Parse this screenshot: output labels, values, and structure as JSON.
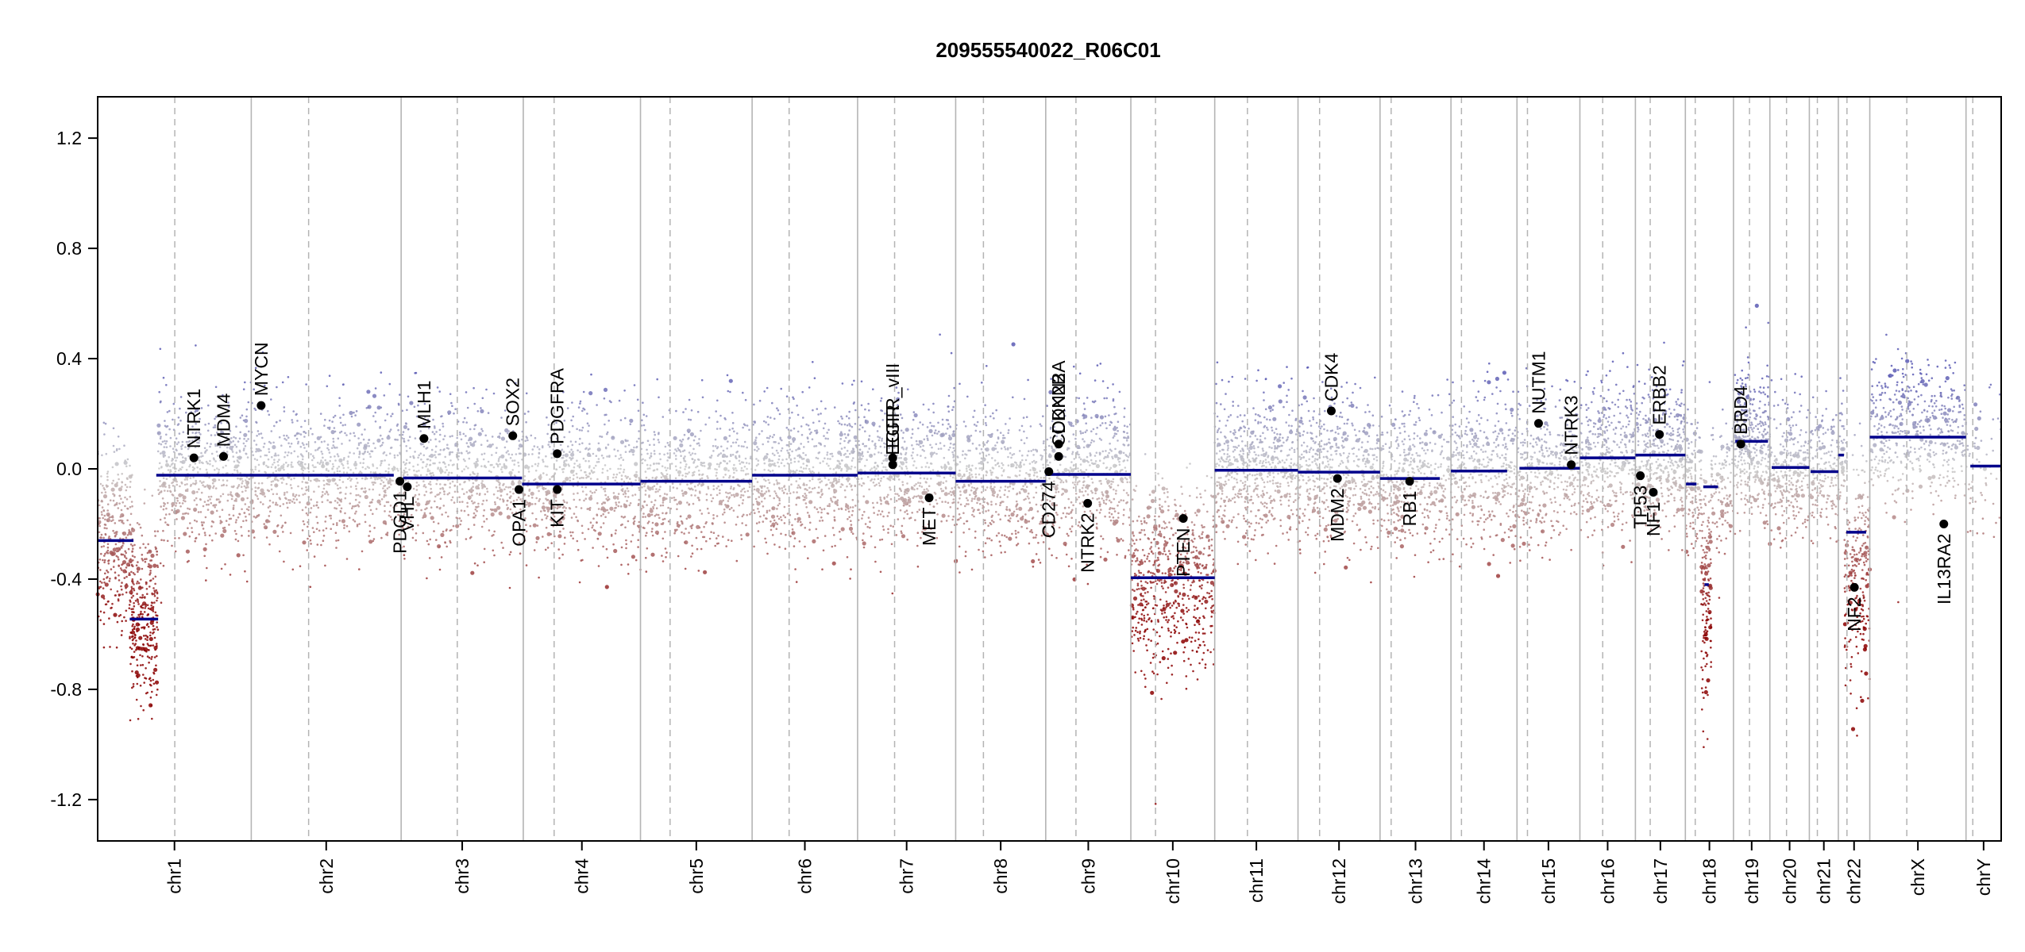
{
  "chart_data": {
    "type": "scatter",
    "title": "209555540022_R06C01",
    "ylim": [
      -1.35,
      1.35
    ],
    "yticks": [
      1.2,
      0.8,
      0.4,
      0.0,
      -0.4,
      -0.8,
      -1.2
    ],
    "ytick_labels": [
      "1.2",
      "0.8",
      "0.4",
      "0.0",
      "-0.4",
      "-0.8",
      "-1.2"
    ],
    "chromosomes": [
      {
        "label": "chr1",
        "start": 0,
        "end": 249,
        "centromere": 125
      },
      {
        "label": "chr2",
        "start": 249,
        "end": 492,
        "centromere": 342
      },
      {
        "label": "chr3",
        "start": 492,
        "end": 690,
        "centromere": 583
      },
      {
        "label": "chr4",
        "start": 690,
        "end": 880,
        "centromere": 740
      },
      {
        "label": "chr5",
        "start": 880,
        "end": 1061,
        "centromere": 928
      },
      {
        "label": "chr6",
        "start": 1061,
        "end": 1232,
        "centromere": 1121
      },
      {
        "label": "chr7",
        "start": 1232,
        "end": 1391,
        "centromere": 1292
      },
      {
        "label": "chr8",
        "start": 1391,
        "end": 1537,
        "centromere": 1436
      },
      {
        "label": "chr9",
        "start": 1537,
        "end": 1675,
        "centromere": 1586
      },
      {
        "label": "chr10",
        "start": 1675,
        "end": 1811,
        "centromere": 1715
      },
      {
        "label": "chr11",
        "start": 1811,
        "end": 1946,
        "centromere": 1864
      },
      {
        "label": "chr12",
        "start": 1946,
        "end": 2079,
        "centromere": 1981
      },
      {
        "label": "chr13",
        "start": 2079,
        "end": 2194,
        "centromere": 2097
      },
      {
        "label": "chr14",
        "start": 2194,
        "end": 2301,
        "centromere": 2211
      },
      {
        "label": "chr15",
        "start": 2301,
        "end": 2403,
        "centromere": 2318
      },
      {
        "label": "chr16",
        "start": 2403,
        "end": 2493,
        "centromere": 2440
      },
      {
        "label": "chr17",
        "start": 2493,
        "end": 2574,
        "centromere": 2517
      },
      {
        "label": "chr18",
        "start": 2574,
        "end": 2652,
        "centromere": 2590
      },
      {
        "label": "chr19",
        "start": 2652,
        "end": 2711,
        "centromere": 2678
      },
      {
        "label": "chr20",
        "start": 2711,
        "end": 2775,
        "centromere": 2738
      },
      {
        "label": "chr21",
        "start": 2775,
        "end": 2822,
        "centromere": 2788
      },
      {
        "label": "chr22",
        "start": 2822,
        "end": 2873,
        "centromere": 2836
      },
      {
        "label": "chrX",
        "start": 2873,
        "end": 3029,
        "centromere": 2933
      },
      {
        "label": "chrY",
        "start": 3029,
        "end": 3086,
        "centromere": 3040
      }
    ],
    "segments": [
      {
        "start": 0,
        "end": 58,
        "value": -0.26
      },
      {
        "start": 52,
        "end": 98,
        "value": -0.545
      },
      {
        "start": 95,
        "end": 480,
        "value": -0.023
      },
      {
        "start": 495,
        "end": 688,
        "value": -0.033
      },
      {
        "start": 688,
        "end": 880,
        "value": -0.055
      },
      {
        "start": 880,
        "end": 1061,
        "value": -0.045
      },
      {
        "start": 1061,
        "end": 1232,
        "value": -0.023
      },
      {
        "start": 1232,
        "end": 1391,
        "value": -0.015
      },
      {
        "start": 1391,
        "end": 1537,
        "value": -0.045
      },
      {
        "start": 1537,
        "end": 1675,
        "value": -0.02
      },
      {
        "start": 1675,
        "end": 1811,
        "value": -0.395
      },
      {
        "start": 1811,
        "end": 1946,
        "value": -0.005
      },
      {
        "start": 1946,
        "end": 2079,
        "value": -0.012
      },
      {
        "start": 2079,
        "end": 2176,
        "value": -0.035
      },
      {
        "start": 2194,
        "end": 2285,
        "value": -0.008
      },
      {
        "start": 2305,
        "end": 2403,
        "value": 0.002
      },
      {
        "start": 2403,
        "end": 2493,
        "value": 0.04
      },
      {
        "start": 2493,
        "end": 2574,
        "value": 0.05
      },
      {
        "start": 2575,
        "end": 2592,
        "value": -0.055
      },
      {
        "start": 2603,
        "end": 2627,
        "value": -0.065
      },
      {
        "start": 2605,
        "end": 2612,
        "value": -0.42
      },
      {
        "start": 2655,
        "end": 2708,
        "value": 0.1
      },
      {
        "start": 2714,
        "end": 2775,
        "value": 0.005
      },
      {
        "start": 2777,
        "end": 2822,
        "value": -0.01
      },
      {
        "start": 2822,
        "end": 2831,
        "value": 0.05
      },
      {
        "start": 2835,
        "end": 2867,
        "value": -0.23
      },
      {
        "start": 2873,
        "end": 3029,
        "value": 0.115
      },
      {
        "start": 3036,
        "end": 3086,
        "value": 0.01
      }
    ],
    "genes": [
      {
        "name": "NTRK1",
        "x": 156,
        "y": 0.04
      },
      {
        "name": "MDM4",
        "x": 204,
        "y": 0.045
      },
      {
        "name": "MYCN",
        "x": 265,
        "y": 0.23
      },
      {
        "name": "PDGD1",
        "x": 490,
        "y": -0.045
      },
      {
        "name": "VHL",
        "x": 502,
        "y": -0.065
      },
      {
        "name": "MLH1",
        "x": 529,
        "y": 0.11
      },
      {
        "name": "SOX2",
        "x": 673,
        "y": 0.12
      },
      {
        "name": "OPA1",
        "x": 683,
        "y": -0.075
      },
      {
        "name": "PDGFRA",
        "x": 745,
        "y": 0.055
      },
      {
        "name": "KIT",
        "x": 745,
        "y": -0.075
      },
      {
        "name": "EGFR_vIII",
        "x": 1289,
        "y": 0.04
      },
      {
        "name": "EGFR",
        "x": 1289,
        "y": 0.015
      },
      {
        "name": "MET",
        "x": 1348,
        "y": -0.105
      },
      {
        "name": "CD274",
        "x": 1542,
        "y": -0.01
      },
      {
        "name": "CDKN2A",
        "x": 1558,
        "y": 0.09
      },
      {
        "name": "CDKN2B",
        "x": 1558,
        "y": 0.045
      },
      {
        "name": "NTRK2",
        "x": 1605,
        "y": -0.125
      },
      {
        "name": "PTEN",
        "x": 1760,
        "y": -0.18
      },
      {
        "name": "CDK4",
        "x": 2000,
        "y": 0.21
      },
      {
        "name": "MDM2",
        "x": 2010,
        "y": -0.035
      },
      {
        "name": "RB1",
        "x": 2127,
        "y": -0.045
      },
      {
        "name": "NUTM1",
        "x": 2336,
        "y": 0.165
      },
      {
        "name": "NTRK3",
        "x": 2389,
        "y": 0.015
      },
      {
        "name": "TP53",
        "x": 2501,
        "y": -0.025
      },
      {
        "name": "NF1",
        "x": 2522,
        "y": -0.085
      },
      {
        "name": "ERBB2",
        "x": 2532,
        "y": 0.125
      },
      {
        "name": "BRD4",
        "x": 2664,
        "y": 0.09
      },
      {
        "name": "NF2",
        "x": 2848,
        "y": -0.43
      },
      {
        "name": "IL13RA2",
        "x": 2993,
        "y": -0.2
      }
    ],
    "probe_cloud": [
      {
        "start": 0,
        "end": 58,
        "center": -0.26,
        "spread": 0.16,
        "n": 330
      },
      {
        "start": 52,
        "end": 98,
        "center": -0.55,
        "spread": 0.17,
        "n": 300
      },
      {
        "start": 98,
        "end": 249,
        "center": -0.02,
        "spread": 0.14,
        "n": 600
      },
      {
        "start": 249,
        "end": 492,
        "center": -0.02,
        "spread": 0.13,
        "n": 800
      },
      {
        "start": 492,
        "end": 690,
        "center": -0.03,
        "spread": 0.13,
        "n": 650
      },
      {
        "start": 690,
        "end": 880,
        "center": -0.05,
        "spread": 0.13,
        "n": 600
      },
      {
        "start": 880,
        "end": 1061,
        "center": -0.04,
        "spread": 0.13,
        "n": 600
      },
      {
        "start": 1061,
        "end": 1232,
        "center": -0.02,
        "spread": 0.13,
        "n": 600
      },
      {
        "start": 1232,
        "end": 1391,
        "center": -0.01,
        "spread": 0.13,
        "n": 550
      },
      {
        "start": 1391,
        "end": 1537,
        "center": -0.04,
        "spread": 0.13,
        "n": 500
      },
      {
        "start": 1537,
        "end": 1675,
        "center": -0.02,
        "spread": 0.14,
        "n": 500
      },
      {
        "start": 1675,
        "end": 1811,
        "center": -0.4,
        "spread": 0.17,
        "n": 650
      },
      {
        "start": 1811,
        "end": 1946,
        "center": 0.0,
        "spread": 0.13,
        "n": 600
      },
      {
        "start": 1946,
        "end": 2079,
        "center": -0.01,
        "spread": 0.13,
        "n": 550
      },
      {
        "start": 2079,
        "end": 2194,
        "center": -0.03,
        "spread": 0.13,
        "n": 400
      },
      {
        "start": 2194,
        "end": 2301,
        "center": -0.01,
        "spread": 0.13,
        "n": 400
      },
      {
        "start": 2301,
        "end": 2403,
        "center": 0.0,
        "spread": 0.13,
        "n": 380
      },
      {
        "start": 2403,
        "end": 2493,
        "center": 0.04,
        "spread": 0.13,
        "n": 380
      },
      {
        "start": 2493,
        "end": 2574,
        "center": 0.05,
        "spread": 0.13,
        "n": 400
      },
      {
        "start": 2574,
        "end": 2600,
        "center": -0.06,
        "spread": 0.12,
        "n": 120
      },
      {
        "start": 2600,
        "end": 2616,
        "center": -0.45,
        "spread": 0.2,
        "n": 160
      },
      {
        "start": 2616,
        "end": 2652,
        "center": -0.06,
        "spread": 0.12,
        "n": 120
      },
      {
        "start": 2652,
        "end": 2711,
        "center": 0.1,
        "spread": 0.13,
        "n": 380
      },
      {
        "start": 2711,
        "end": 2775,
        "center": 0.0,
        "spread": 0.12,
        "n": 260
      },
      {
        "start": 2775,
        "end": 2822,
        "center": -0.01,
        "spread": 0.12,
        "n": 160
      },
      {
        "start": 2822,
        "end": 2832,
        "center": 0.05,
        "spread": 0.1,
        "n": 40
      },
      {
        "start": 2832,
        "end": 2873,
        "center": -0.4,
        "spread": 0.2,
        "n": 260
      },
      {
        "start": 2873,
        "end": 3029,
        "center": 0.14,
        "spread": 0.13,
        "n": 500
      },
      {
        "start": 3029,
        "end": 3086,
        "center": 0.01,
        "spread": 0.12,
        "n": 60
      }
    ],
    "colors": {
      "gain": "#5a5ab4",
      "neutral": "#c8c8c8",
      "loss": "#8b0000",
      "segment": "#00008b",
      "gene_point": "#000000",
      "chrom_boundary": "#b4b4b4",
      "centromere": "#b4b4b4"
    },
    "grid": false,
    "legend": "none"
  }
}
